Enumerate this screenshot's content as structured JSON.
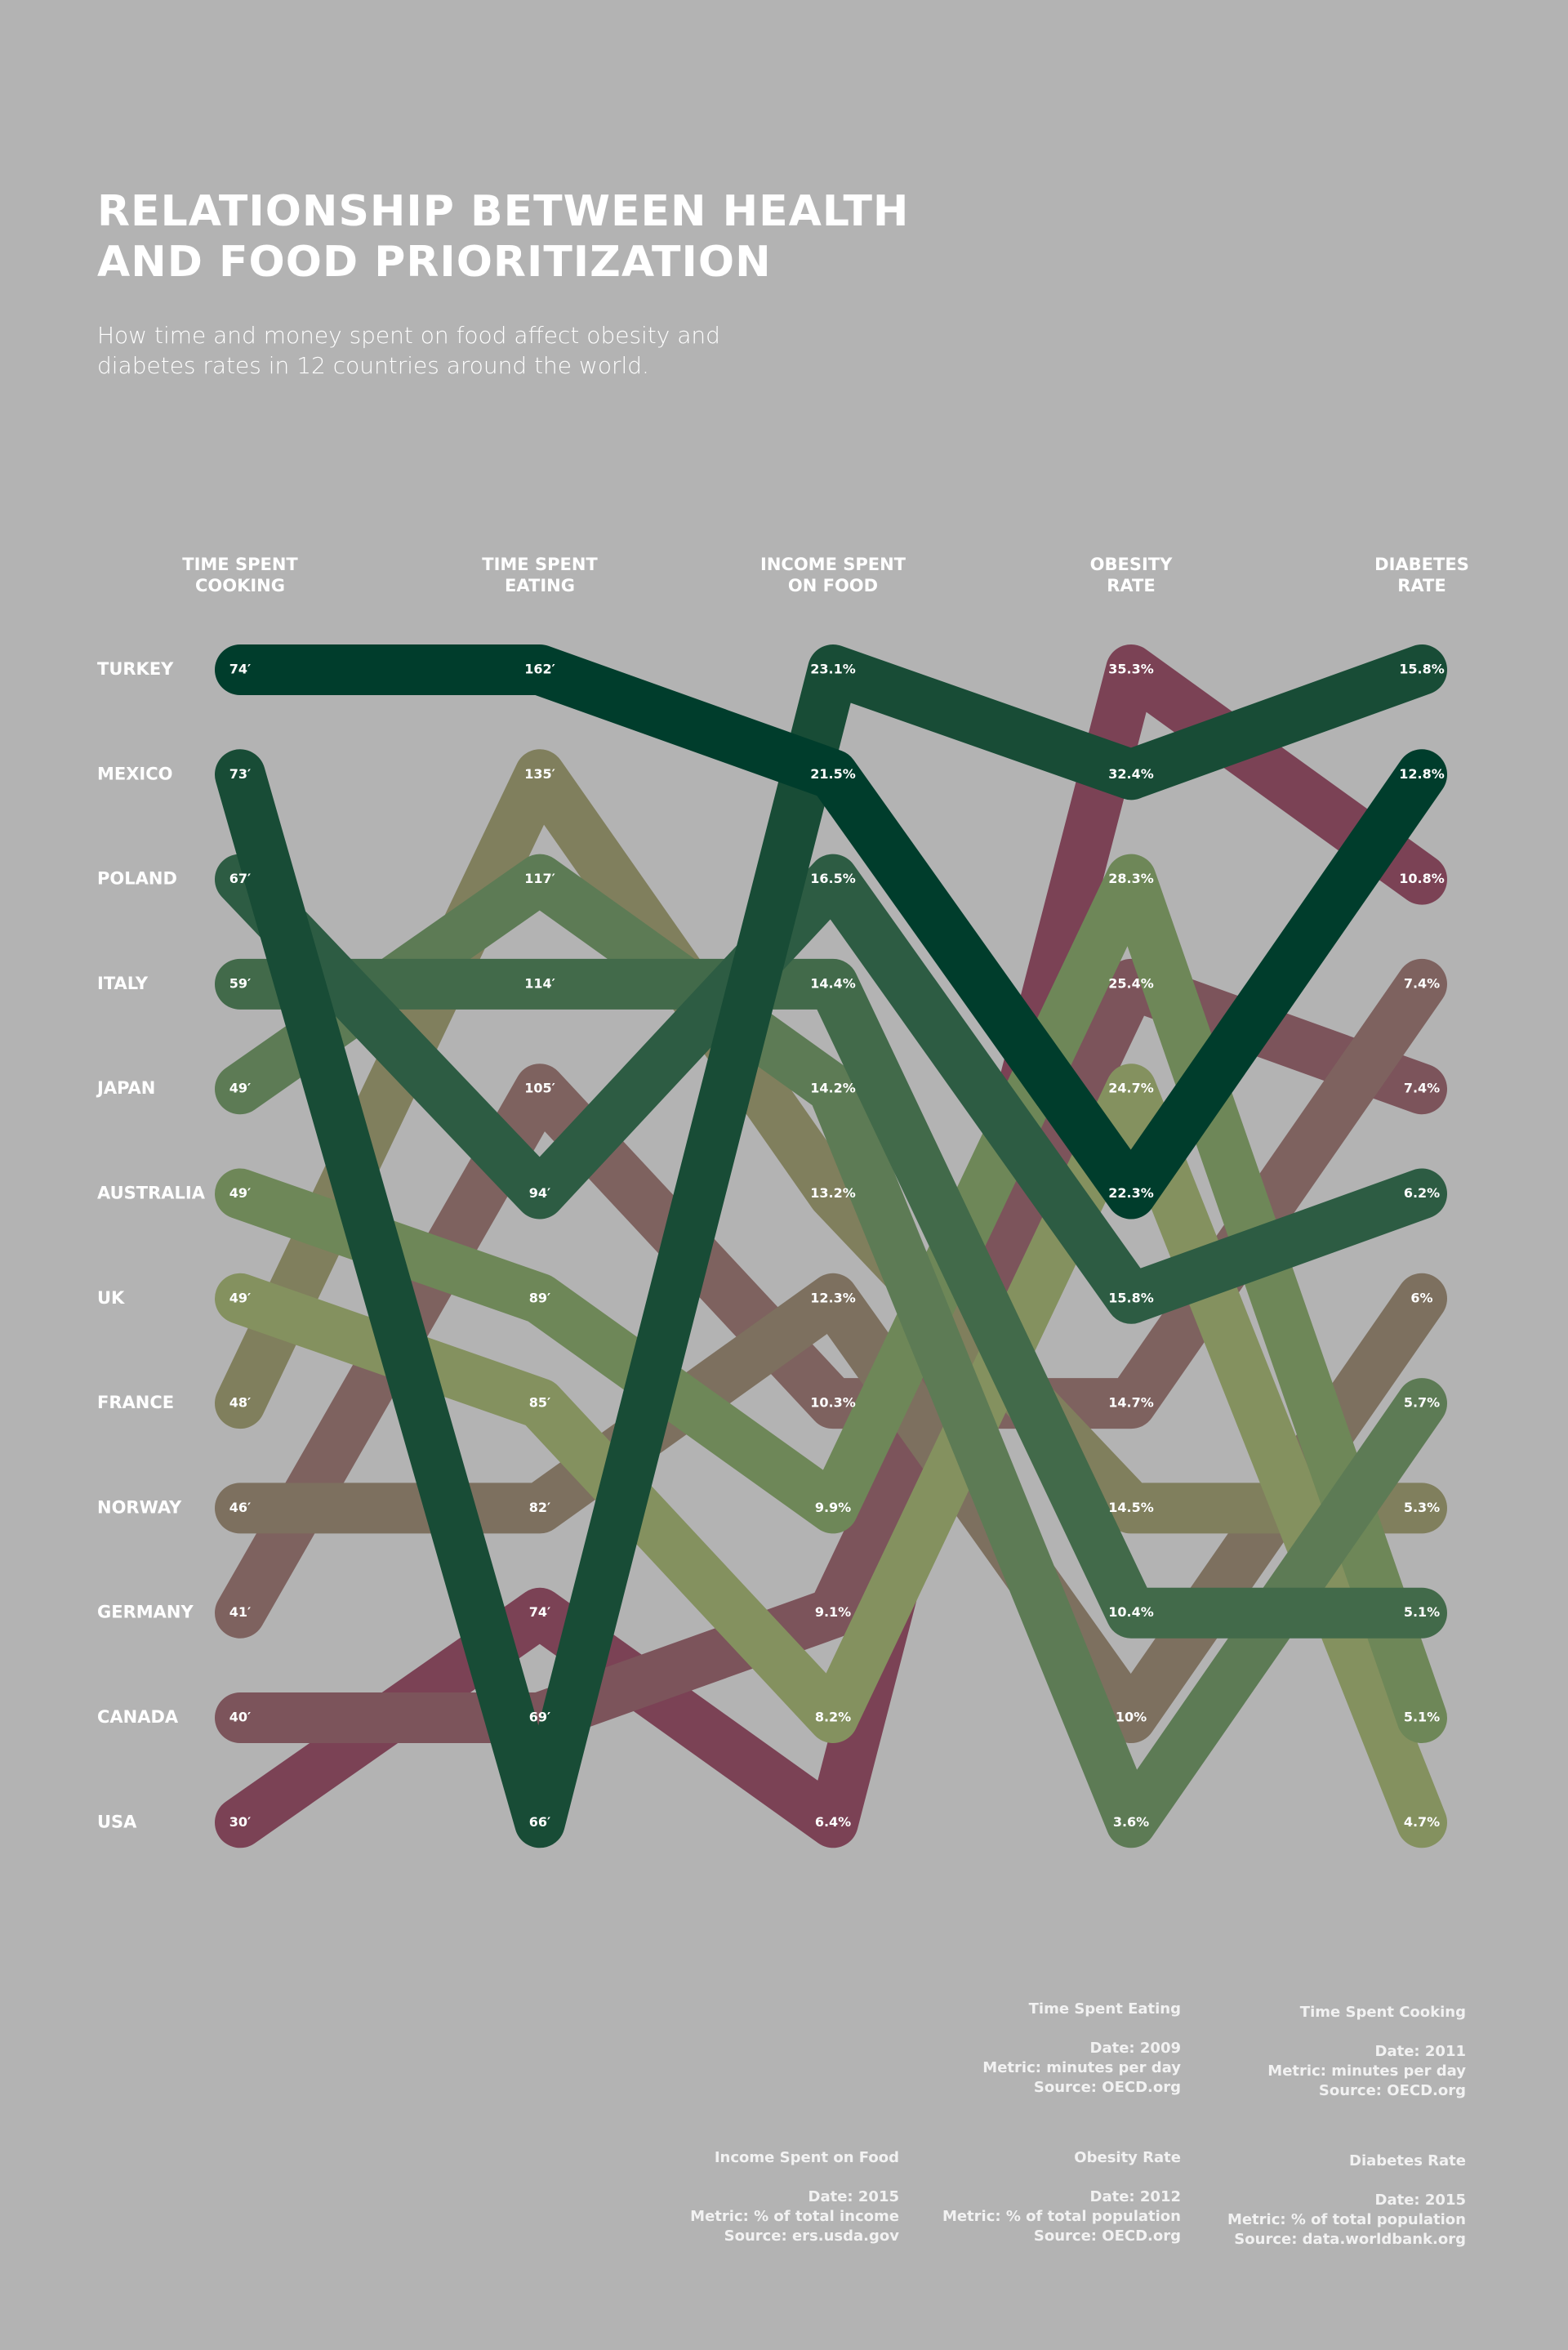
{
  "chart_data": {
    "type": "slope",
    "title": "RELATIONSHIP BETWEEN HEALTH\nAND FOOD PRIORITIZATION",
    "subtitle": "How time and money spent on food affect obesity and\ndiabetes rates in 12 countries around the world.",
    "categories": [
      "TIME SPENT\nCOOKING",
      "TIME SPENT\nEATING",
      "INCOME SPENT\nON FOOD",
      "OBESITY\nRATE",
      "DIABETES\nRATE"
    ],
    "series": [
      {
        "name": "TURKEY",
        "color": "#003d2c",
        "values": [
          74,
          162,
          21.5,
          22.3,
          12.8
        ],
        "value_labels": [
          "74′",
          "162′",
          "21.5%",
          "22.3%",
          "12.8%"
        ]
      },
      {
        "name": "MEXICO",
        "color": "#184c36",
        "values": [
          73,
          66,
          23.1,
          32.4,
          15.8
        ],
        "value_labels": [
          "73′",
          "66′",
          "23.1%",
          "32.4%",
          "15.8%"
        ]
      },
      {
        "name": "POLAND",
        "color": "#2d5c43",
        "values": [
          67,
          94,
          16.5,
          15.8,
          6.2
        ],
        "value_labels": [
          "67′",
          "94′",
          "16.5%",
          "15.8%",
          "6.2%"
        ]
      },
      {
        "name": "ITALY",
        "color": "#426a4a",
        "values": [
          59,
          114,
          14.4,
          10.4,
          5.1
        ],
        "value_labels": [
          "59′",
          "114′",
          "14.4%",
          "10.4%",
          "5.1%"
        ]
      },
      {
        "name": "JAPAN",
        "color": "#5d7b55",
        "values": [
          49,
          117,
          14.2,
          3.6,
          5.7
        ],
        "value_labels": [
          "49′",
          "117′",
          "14.2%",
          "3.6%",
          "5.7%"
        ]
      },
      {
        "name": "AUSTRALIA",
        "color": "#6e8758",
        "values": [
          49,
          89,
          9.9,
          28.3,
          5.1
        ],
        "value_labels": [
          "49′",
          "89′",
          "9.9%",
          "28.3%",
          "5.1%"
        ]
      },
      {
        "name": "UK",
        "color": "#84915f",
        "values": [
          49,
          85,
          8.2,
          24.7,
          4.7
        ],
        "value_labels": [
          "49′",
          "85′",
          "8.2%",
          "24.7%",
          "4.7%"
        ]
      },
      {
        "name": "FRANCE",
        "color": "#807f5d",
        "values": [
          48,
          135,
          13.2,
          14.5,
          5.3
        ],
        "value_labels": [
          "48′",
          "135′",
          "13.2%",
          "14.5%",
          "5.3%"
        ]
      },
      {
        "name": "NORWAY",
        "color": "#7d705f",
        "values": [
          46,
          82,
          12.3,
          10,
          6
        ],
        "value_labels": [
          "46′",
          "82′",
          "12.3%",
          "10%",
          "6%"
        ]
      },
      {
        "name": "GERMANY",
        "color": "#7e625f",
        "values": [
          41,
          105,
          10.3,
          14.7,
          7.4
        ],
        "value_labels": [
          "41′",
          "105′",
          "10.3%",
          "14.7%",
          "7.4%"
        ]
      },
      {
        "name": "CANADA",
        "color": "#7c545b",
        "values": [
          40,
          69,
          9.1,
          25.4,
          7.4
        ],
        "value_labels": [
          "40′",
          "69′",
          "9.1%",
          "25.4%",
          "7.4%"
        ]
      },
      {
        "name": "USA",
        "color": "#7b4255",
        "values": [
          30,
          74,
          6.4,
          35.3,
          10.8
        ],
        "value_labels": [
          "30′",
          "74′",
          "6.4%",
          "35.3%",
          "10.8%"
        ]
      }
    ]
  },
  "notes": [
    {
      "title": "Time Spent Eating",
      "date": "Date: 2009",
      "metric": "Metric: minutes per day",
      "source": "Source: OECD.org"
    },
    {
      "title": "Time Spent Cooking",
      "date": "Date: 2011",
      "metric": "Metric: minutes per day",
      "source": "Source: OECD.org"
    },
    {
      "title": "Income Spent on Food",
      "date": "Date: 2015",
      "metric": "Metric: % of total income",
      "source": "Source: ers.usda.gov"
    },
    {
      "title": "Obesity Rate",
      "date": "Date: 2012",
      "metric": "Metric: % of total population",
      "source": "Source: OECD.org"
    },
    {
      "title": "Diabetes Rate",
      "date": "Date: 2015",
      "metric": "Metric: % of total population",
      "source": "Source: data.worldbank.org"
    }
  ]
}
